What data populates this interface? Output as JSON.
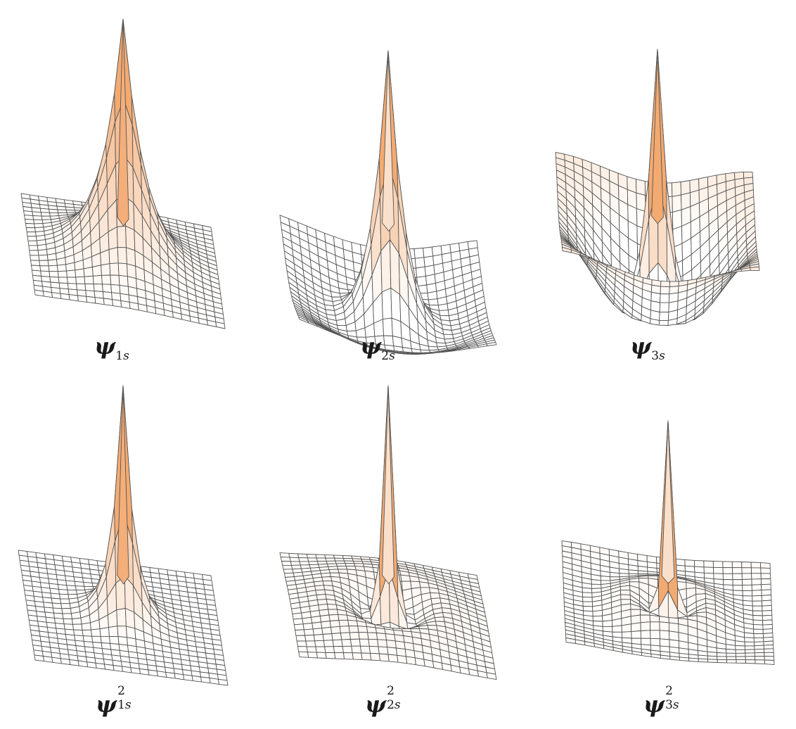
{
  "figure": {
    "fill_color": "#f2a56a",
    "line_color": "#555555",
    "panels": [
      {
        "id": "psi-1s",
        "label": {
          "symbol": "ψ",
          "subscript_num": "1",
          "subscript_letter": "s",
          "superscript": ""
        },
        "n": 1,
        "squared": false
      },
      {
        "id": "psi-2s",
        "label": {
          "symbol": "ψ",
          "subscript_num": "2",
          "subscript_letter": "s",
          "superscript": ""
        },
        "n": 2,
        "squared": false
      },
      {
        "id": "psi-3s",
        "label": {
          "symbol": "ψ",
          "subscript_num": "3",
          "subscript_letter": "s",
          "superscript": ""
        },
        "n": 3,
        "squared": false
      },
      {
        "id": "psi-1s-sq",
        "label": {
          "symbol": "ψ",
          "subscript_num": "1",
          "subscript_letter": "s",
          "superscript": "2"
        },
        "n": 1,
        "squared": true
      },
      {
        "id": "psi-2s-sq",
        "label": {
          "symbol": "ψ",
          "subscript_num": "2",
          "subscript_letter": "s",
          "superscript": "2"
        },
        "n": 2,
        "squared": true
      },
      {
        "id": "psi-3s-sq",
        "label": {
          "symbol": "ψ",
          "subscript_num": "3",
          "subscript_letter": "s",
          "superscript": "2"
        },
        "n": 3,
        "squared": true
      }
    ]
  }
}
